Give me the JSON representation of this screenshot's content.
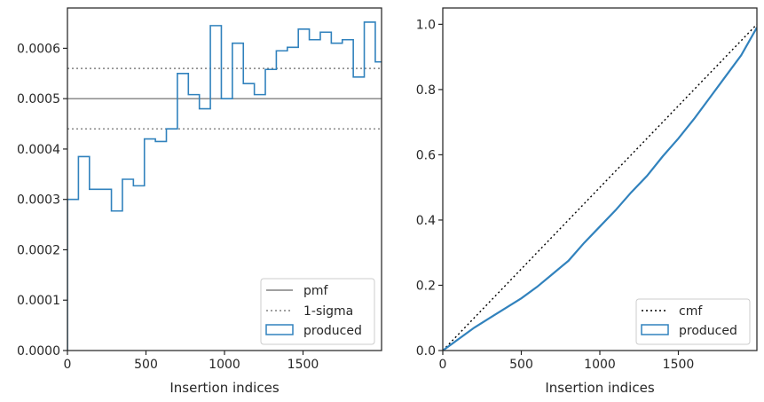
{
  "colors": {
    "produced": "#3182bd",
    "pmf": "#808080",
    "sigma": "#808080",
    "cmf": "#000000",
    "axes": "#262626"
  },
  "chart_data": [
    {
      "type": "step-histogram",
      "xlabel": "Insertion indices",
      "ylabel": "",
      "xlim": [
        0,
        2000
      ],
      "ylim": [
        0,
        0.00068
      ],
      "xticks": [
        0,
        500,
        1000,
        1500
      ],
      "xtick_labels": [
        "0",
        "500",
        "1000",
        "1500"
      ],
      "yticks": [
        0,
        0.0001,
        0.0002,
        0.0003,
        0.0004,
        0.0005,
        0.0006
      ],
      "ytick_labels": [
        "0.0000",
        "0.0001",
        "0.0002",
        "0.0003",
        "0.0004",
        "0.0005",
        "0.0006"
      ],
      "grid": false,
      "bin_edges": [
        0,
        70,
        140,
        210,
        280,
        350,
        420,
        490,
        560,
        630,
        700,
        770,
        840,
        910,
        980,
        1050,
        1120,
        1190,
        1260,
        1330,
        1400,
        1470,
        1540,
        1610,
        1680,
        1750,
        1820,
        1890,
        1960,
        2030
      ],
      "bin_values": [
        0.0003,
        0.000385,
        0.00032,
        0.00032,
        0.000277,
        0.00034,
        0.000327,
        0.00042,
        0.000415,
        0.00044,
        0.00055,
        0.000508,
        0.00048,
        0.000645,
        0.0005,
        0.00061,
        0.00053,
        0.000508,
        0.000558,
        0.000595,
        0.000602,
        0.000638,
        0.000617,
        0.000632,
        0.00061,
        0.000617,
        0.000543,
        0.000652,
        0.000573
      ],
      "hlines": [
        {
          "y": 0.0005,
          "style": "solid",
          "name": "pmf"
        },
        {
          "y": 0.00056,
          "style": "dotted",
          "name": "1-sigma"
        },
        {
          "y": 0.00044,
          "style": "dotted",
          "name": "1-sigma"
        }
      ],
      "legend": {
        "placement": "lower-right",
        "entries": [
          {
            "label": "pmf",
            "kind": "solid-line"
          },
          {
            "label": "1-sigma",
            "kind": "dotted-line"
          },
          {
            "label": "produced",
            "kind": "patch"
          }
        ]
      }
    },
    {
      "type": "line",
      "xlabel": "Insertion indices",
      "ylabel": "",
      "xlim": [
        0,
        2000
      ],
      "ylim": [
        0,
        1.05
      ],
      "xticks": [
        0,
        500,
        1000,
        1500
      ],
      "xtick_labels": [
        "0",
        "500",
        "1000",
        "1500"
      ],
      "yticks": [
        0,
        0.2,
        0.4,
        0.6,
        0.8,
        1.0
      ],
      "ytick_labels": [
        "0.0",
        "0.2",
        "0.4",
        "0.6",
        "0.8",
        "1.0"
      ],
      "grid": false,
      "series": [
        {
          "name": "cmf",
          "style": "dotted",
          "x": [
            0,
            2000
          ],
          "y": [
            0,
            1.0
          ]
        },
        {
          "name": "produced",
          "style": "solid",
          "x": [
            0,
            100,
            200,
            300,
            400,
            500,
            600,
            700,
            800,
            900,
            1000,
            1100,
            1200,
            1300,
            1400,
            1500,
            1600,
            1700,
            1800,
            1900,
            2000
          ],
          "y": [
            0,
            0.035,
            0.07,
            0.1,
            0.13,
            0.16,
            0.195,
            0.235,
            0.275,
            0.33,
            0.38,
            0.43,
            0.485,
            0.535,
            0.595,
            0.65,
            0.71,
            0.775,
            0.84,
            0.905,
            0.99
          ]
        }
      ],
      "legend": {
        "placement": "lower-right",
        "entries": [
          {
            "label": "cmf",
            "kind": "dotted-line"
          },
          {
            "label": "produced",
            "kind": "patch"
          }
        ]
      }
    }
  ]
}
